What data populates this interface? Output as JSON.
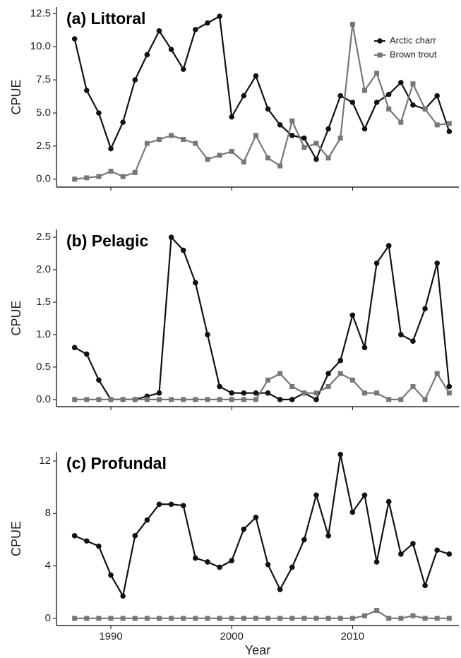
{
  "chart_data": [
    {
      "type": "line",
      "title": "(a) Littoral",
      "ylabel": "CPUE",
      "legend": "top-right",
      "x": [
        1987,
        1988,
        1989,
        1990,
        1991,
        1992,
        1993,
        1994,
        1995,
        1996,
        1997,
        1998,
        1999,
        2000,
        2001,
        2002,
        2003,
        2004,
        2005,
        2006,
        2007,
        2008,
        2009,
        2010,
        2011,
        2012,
        2013,
        2014,
        2015,
        2016,
        2017,
        2018
      ],
      "xlim": [
        1985.5,
        2018.8
      ],
      "xticks": [
        1990,
        2000,
        2010
      ],
      "ylim": [
        -0.6,
        13
      ],
      "yticks": [
        {
          "value": 0,
          "label": "0.0"
        },
        2.5,
        {
          "value": 5,
          "label": "5.0"
        },
        7.5,
        {
          "value": 10,
          "label": "10.0"
        },
        12.5
      ],
      "series": [
        {
          "name": "Arctic charr",
          "color": "#111111",
          "marker": "circle",
          "values": [
            10.6,
            6.7,
            5.0,
            2.3,
            4.3,
            7.5,
            9.4,
            11.2,
            9.8,
            8.3,
            11.3,
            11.8,
            12.3,
            4.7,
            6.3,
            7.8,
            5.3,
            4.1,
            3.3,
            3.1,
            1.5,
            3.8,
            6.3,
            5.8,
            3.8,
            5.8,
            6.4,
            7.3,
            5.6,
            5.3,
            6.3,
            3.6
          ]
        },
        {
          "name": "Brown trout",
          "color": "#777777",
          "marker": "square",
          "values": [
            0,
            0.1,
            0.2,
            0.6,
            0.2,
            0.5,
            2.7,
            3.0,
            3.3,
            3.0,
            2.7,
            1.5,
            1.8,
            2.1,
            1.3,
            3.3,
            1.6,
            1.0,
            4.4,
            2.4,
            2.7,
            1.6,
            3.1,
            11.7,
            6.7,
            8.0,
            5.3,
            4.3,
            7.2,
            5.3,
            4.1,
            4.2
          ]
        }
      ]
    },
    {
      "type": "line",
      "title": "(b) Pelagic",
      "ylabel": "CPUE",
      "x": [
        1987,
        1988,
        1989,
        1990,
        1991,
        1992,
        1993,
        1994,
        1995,
        1996,
        1997,
        1998,
        1999,
        2000,
        2001,
        2002,
        2003,
        2004,
        2005,
        2006,
        2007,
        2008,
        2009,
        2010,
        2011,
        2012,
        2013,
        2014,
        2015,
        2016,
        2017,
        2018
      ],
      "xlim": [
        1985.5,
        2018.8
      ],
      "xticks": [
        1990,
        2000,
        2010
      ],
      "ylim": [
        -0.11,
        2.62
      ],
      "yticks": [
        {
          "value": 0,
          "label": "0.0"
        },
        0.5,
        {
          "value": 1,
          "label": "1.0"
        },
        1.5,
        {
          "value": 2,
          "label": "2.0"
        },
        2.5
      ],
      "series": [
        {
          "name": "Arctic charr",
          "color": "#111111",
          "marker": "circle",
          "values": [
            0.8,
            0.7,
            0.3,
            0,
            0,
            0,
            0.05,
            0.1,
            2.5,
            2.3,
            1.8,
            1.0,
            0.2,
            0.1,
            0.1,
            0.1,
            0.1,
            0,
            0,
            0.1,
            0,
            0.4,
            0.6,
            1.3,
            0.8,
            2.1,
            2.37,
            1.0,
            0.9,
            1.4,
            2.1,
            0.2
          ]
        },
        {
          "name": "Brown trout",
          "color": "#777777",
          "marker": "square",
          "values": [
            0,
            0,
            0,
            0,
            0,
            0,
            0,
            0,
            0,
            0,
            0,
            0,
            0,
            0,
            0,
            0,
            0.3,
            0.4,
            0.2,
            0.1,
            0.1,
            0.2,
            0.4,
            0.3,
            0.1,
            0.1,
            0,
            0,
            0.2,
            0,
            0.4,
            0.1
          ]
        }
      ]
    },
    {
      "type": "line",
      "title": "(c) Profundal",
      "ylabel": "CPUE",
      "xlabel": "Year",
      "x": [
        1987,
        1988,
        1989,
        1990,
        1991,
        1992,
        1993,
        1994,
        1995,
        1996,
        1997,
        1998,
        1999,
        2000,
        2001,
        2002,
        2003,
        2004,
        2005,
        2006,
        2007,
        2008,
        2009,
        2010,
        2011,
        2012,
        2013,
        2014,
        2015,
        2016,
        2017,
        2018
      ],
      "xlim": [
        1985.5,
        2018.8
      ],
      "xticks": [
        1990,
        2000,
        2010
      ],
      "ylim": [
        -0.55,
        12.7
      ],
      "yticks": [
        0,
        4,
        8,
        12
      ],
      "series": [
        {
          "name": "Arctic charr",
          "color": "#111111",
          "marker": "circle",
          "values": [
            6.3,
            5.9,
            5.5,
            3.3,
            1.7,
            6.3,
            7.5,
            8.7,
            8.7,
            8.6,
            4.6,
            4.3,
            3.9,
            4.4,
            6.8,
            7.7,
            4.1,
            2.2,
            3.9,
            6.0,
            9.4,
            6.3,
            12.5,
            8.1,
            9.4,
            4.3,
            8.9,
            4.9,
            5.7,
            2.5,
            5.2,
            4.9
          ]
        },
        {
          "name": "Brown trout",
          "color": "#777777",
          "marker": "square",
          "values": [
            0,
            0,
            0,
            0,
            0,
            0,
            0,
            0,
            0,
            0,
            0,
            0,
            0,
            0,
            0,
            0,
            0,
            0,
            0,
            0,
            0,
            0,
            0,
            0,
            0.2,
            0.6,
            0,
            0,
            0.2,
            0,
            0,
            0
          ]
        }
      ]
    }
  ]
}
